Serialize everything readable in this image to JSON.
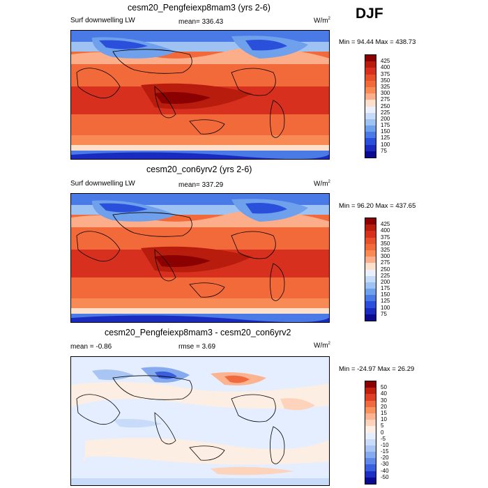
{
  "season": "DJF",
  "panels": [
    {
      "title": "cesm20_Pengfeiexp8mam3 (yrs 2-6)",
      "left_label": "Surf downwelling LW",
      "center_label": "mean= 336.43",
      "units": "W/m",
      "units_sup": "2",
      "minmax": "Min = 94.44 Max = 438.73",
      "colorbar_labels": [
        "425",
        "400",
        "375",
        "350",
        "325",
        "300",
        "275",
        "250",
        "225",
        "200",
        "175",
        "150",
        "125",
        "100",
        "75"
      ],
      "colorbar_colors": [
        "#8b0000",
        "#b71c0c",
        "#d7301f",
        "#e6502a",
        "#f26a3a",
        "#f88a56",
        "#fcae8a",
        "#fde0cc",
        "#eaf0ff",
        "#c6dbf7",
        "#9ec2f2",
        "#6ea0ec",
        "#4a7ae6",
        "#2a4fdb",
        "#1a2cc0",
        "#0b0b8f"
      ]
    },
    {
      "title": "cesm20_con6yrv2 (yrs 2-6)",
      "left_label": "Surf downwelling LW",
      "center_label": "mean= 337.29",
      "units": "W/m",
      "units_sup": "2",
      "minmax": "Min = 96.20 Max = 437.65",
      "colorbar_labels": [
        "425",
        "400",
        "375",
        "350",
        "325",
        "300",
        "275",
        "250",
        "225",
        "200",
        "175",
        "150",
        "125",
        "100",
        "75"
      ],
      "colorbar_colors": [
        "#8b0000",
        "#b71c0c",
        "#d7301f",
        "#e6502a",
        "#f26a3a",
        "#f88a56",
        "#fcae8a",
        "#fde0cc",
        "#eaf0ff",
        "#c6dbf7",
        "#9ec2f2",
        "#6ea0ec",
        "#4a7ae6",
        "#2a4fdb",
        "#1a2cc0",
        "#0b0b8f"
      ]
    },
    {
      "title": "cesm20_Pengfeiexp8mam3 - cesm20_con6yrv2",
      "left_label": "mean = -0.86",
      "center_label": "rmse = 3.69",
      "units": "W/m",
      "units_sup": "2",
      "minmax": "Min = -24.97 Max = 26.29",
      "colorbar_labels": [
        "50",
        "40",
        "30",
        "20",
        "15",
        "10",
        "5",
        "0",
        "-5",
        "-10",
        "-15",
        "-20",
        "-30",
        "-40",
        "-50"
      ],
      "colorbar_colors": [
        "#8b0000",
        "#c0200e",
        "#de3f25",
        "#ef6a3f",
        "#f7925f",
        "#fbb48f",
        "#fdd3bc",
        "#fdeee3",
        "#e4eeff",
        "#c8dbf8",
        "#a9c5f3",
        "#85aaee",
        "#5f88e8",
        "#3a5fde",
        "#1c2fc4",
        "#0b0b8f"
      ]
    }
  ],
  "chart_data": [
    {
      "type": "heatmap",
      "title": "cesm20_Pengfeiexp8mam3 (yrs 2-6)",
      "variable": "Surf downwelling LW",
      "units": "W/m2",
      "mean": 336.43,
      "min": 94.44,
      "max": 438.73,
      "levels": [
        75,
        100,
        125,
        150,
        175,
        200,
        225,
        250,
        275,
        300,
        325,
        350,
        375,
        400,
        425
      ]
    },
    {
      "type": "heatmap",
      "title": "cesm20_con6yrv2 (yrs 2-6)",
      "variable": "Surf downwelling LW",
      "units": "W/m2",
      "mean": 337.29,
      "min": 96.2,
      "max": 437.65,
      "levels": [
        75,
        100,
        125,
        150,
        175,
        200,
        225,
        250,
        275,
        300,
        325,
        350,
        375,
        400,
        425
      ]
    },
    {
      "type": "heatmap",
      "title": "cesm20_Pengfeiexp8mam3 - cesm20_con6yrv2",
      "units": "W/m2",
      "mean": -0.86,
      "rmse": 3.69,
      "min": -24.97,
      "max": 26.29,
      "levels": [
        -50,
        -40,
        -30,
        -20,
        -15,
        -10,
        -5,
        0,
        5,
        10,
        15,
        20,
        30,
        40,
        50
      ]
    }
  ]
}
